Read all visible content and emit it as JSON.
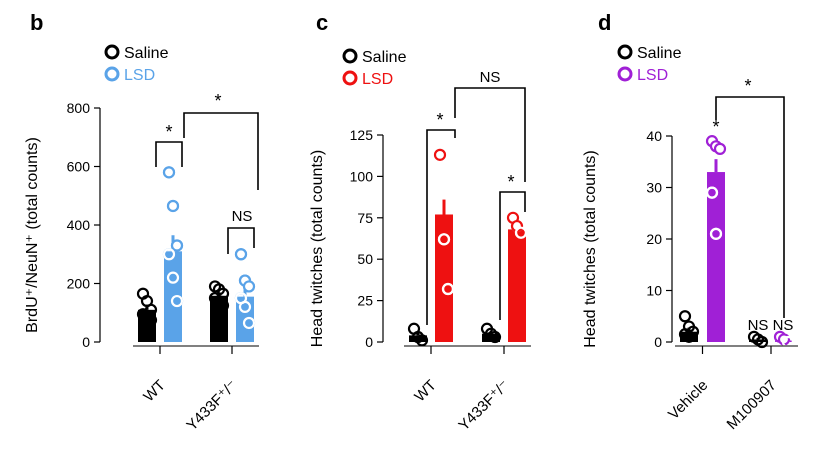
{
  "chart_data": [
    {
      "type": "bar",
      "panel_label": "b",
      "ylabel": "BrdU⁺/NeuN⁺ (total counts)",
      "ylim": [
        0,
        800
      ],
      "yticks": [
        0,
        200,
        400,
        600,
        800
      ],
      "categories": [
        "WT",
        "Y433F⁺/⁻"
      ],
      "series": [
        {
          "name": "Saline",
          "color": "#000000",
          "values": [
            110,
            158
          ],
          "sem": [
            18,
            12
          ],
          "points": [
            [
              165,
              140,
              110,
              95,
              80,
              75
            ],
            [
              190,
              180,
              165,
              150,
              140,
              125
            ]
          ]
        },
        {
          "name": "LSD",
          "color": "#5aa3e8",
          "values": [
            310,
            155
          ],
          "sem": [
            55,
            30
          ],
          "points": [
            [
              580,
              465,
              330,
              300,
              220,
              140
            ],
            [
              300,
              210,
              190,
              150,
              120,
              65
            ]
          ]
        }
      ],
      "significance": [
        {
          "label": "*",
          "between": "WT Saline vs WT LSD"
        },
        {
          "label": "*",
          "between": "WT LSD vs Y433F LSD"
        },
        {
          "label": "NS",
          "between": "Y433F Saline vs Y433F LSD"
        }
      ]
    },
    {
      "type": "bar",
      "panel_label": "c",
      "ylabel": "Head twitches (total counts)",
      "ylim": [
        0,
        125
      ],
      "yticks": [
        0,
        25,
        50,
        75,
        100,
        125
      ],
      "categories": [
        "WT",
        "Y433F⁺/⁻"
      ],
      "series": [
        {
          "name": "Saline",
          "color": "#000000",
          "values": [
            4,
            5
          ],
          "sem": [
            2,
            1.5
          ],
          "points": [
            [
              8,
              3,
              1
            ],
            [
              8,
              5,
              3
            ]
          ]
        },
        {
          "name": "LSD",
          "color": "#ee1111",
          "values": [
            77,
            68
          ],
          "sem": [
            9,
            4
          ],
          "points": [
            [
              113,
              62,
              32
            ],
            [
              75,
              70,
              66
            ]
          ]
        }
      ],
      "significance": [
        {
          "label": "*",
          "between": "WT Saline vs WT LSD"
        },
        {
          "label": "*",
          "between": "Y433F Saline vs Y433F LSD"
        },
        {
          "label": "NS",
          "between": "WT LSD vs Y433F LSD"
        }
      ]
    },
    {
      "type": "bar",
      "panel_label": "d",
      "ylabel": "Head twitches (total counts)",
      "ylim": [
        0,
        40
      ],
      "yticks": [
        0,
        10,
        20,
        30,
        40
      ],
      "categories": [
        "Vehicle",
        "M100907"
      ],
      "series": [
        {
          "name": "Saline",
          "color": "#000000",
          "values": [
            2,
            0.5
          ],
          "sem": [
            0.8,
            0.3
          ],
          "points": [
            [
              5,
              3,
              2,
              1.5,
              1
            ],
            [
              1,
              0.5,
              0
            ]
          ]
        },
        {
          "name": "LSD",
          "color": "#a020d6",
          "values": [
            33,
            0.3
          ],
          "sem": [
            2.5,
            0.3
          ],
          "points": [
            [
              39,
              38,
              37.5,
              29,
              21
            ],
            [
              1,
              0.5,
              0
            ]
          ]
        }
      ],
      "significance": [
        {
          "label": "*",
          "between": "Vehicle Saline vs Vehicle LSD"
        },
        {
          "label": "*",
          "between": "Vehicle LSD vs M100907 LSD"
        },
        {
          "label": "NS",
          "between": "M100907 Saline vs Vehicle Saline"
        },
        {
          "label": "NS",
          "between": "M100907 LSD vs Vehicle LSD"
        }
      ]
    }
  ]
}
